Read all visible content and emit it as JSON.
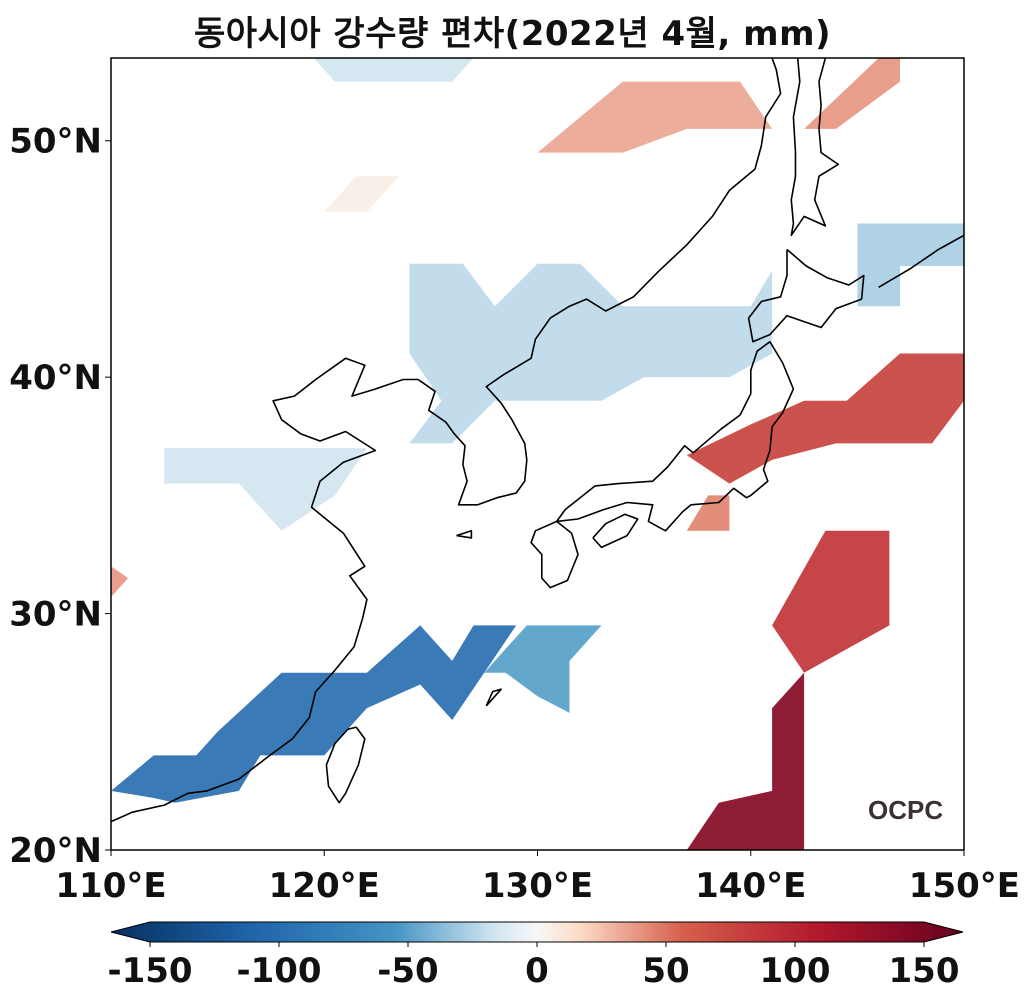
{
  "title": "동아시아 강수량 편차(2022년 4월, mm)",
  "logo": "OCPC",
  "map": {
    "lon_range": [
      110,
      150
    ],
    "lat_range": [
      20,
      53.5
    ],
    "lon_ticks": [
      "110°E",
      "120°E",
      "130°E",
      "140°E",
      "150°E"
    ],
    "lat_ticks": [
      "20°N",
      "30°N",
      "40°N",
      "50°N"
    ]
  },
  "colorbar": {
    "range": [
      -150,
      150
    ],
    "tick_labels": [
      "-150",
      "-100",
      "-50",
      "0",
      "50",
      "100",
      "150"
    ],
    "colormap": "RdBu_r",
    "colors": {
      "min": "#053061",
      "neg": "#4393c3",
      "zero": "#f7f7f7",
      "pos": "#d6604d",
      "max": "#67001f"
    }
  },
  "anomaly_regions": [
    {
      "name": "north-sea-blue",
      "value": -15,
      "lonlat": [
        [
          119.5,
          53.5
        ],
        [
          127,
          53.5
        ],
        [
          126,
          52.5
        ],
        [
          120.5,
          52.5
        ]
      ]
    },
    {
      "name": "okhotsk-red-band",
      "value": 30,
      "lonlat": [
        [
          130,
          49.5
        ],
        [
          134,
          52.5
        ],
        [
          139.5,
          52.5
        ],
        [
          141,
          50.5
        ],
        [
          137,
          50.5
        ],
        [
          134,
          49.5
        ]
      ]
    },
    {
      "name": "sakhalin-red",
      "value": 35,
      "lonlat": [
        [
          142.5,
          50.5
        ],
        [
          146,
          53.5
        ],
        [
          147,
          53.5
        ],
        [
          147,
          52.5
        ],
        [
          144,
          50.5
        ]
      ]
    },
    {
      "name": "small-white-red",
      "value": 5,
      "lonlat": [
        [
          120,
          47
        ],
        [
          121.5,
          48.5
        ],
        [
          123.5,
          48.5
        ],
        [
          122,
          47
        ]
      ]
    },
    {
      "name": "hokkaido-east-blue",
      "value": -25,
      "lonlat": [
        [
          145,
          46.5
        ],
        [
          150,
          46.5
        ],
        [
          150,
          44.7
        ],
        [
          147,
          44.7
        ],
        [
          147,
          43
        ],
        [
          145,
          43
        ]
      ]
    },
    {
      "name": "manchuria-korea-blue",
      "value": -20,
      "lonlat": [
        [
          124,
          44.8
        ],
        [
          126.5,
          44.8
        ],
        [
          128,
          43
        ],
        [
          130,
          44.8
        ],
        [
          132,
          44.8
        ],
        [
          134,
          43
        ],
        [
          140,
          43
        ],
        [
          141,
          44.5
        ],
        [
          141,
          41
        ],
        [
          139,
          40
        ],
        [
          135,
          40
        ],
        [
          133,
          39
        ],
        [
          128,
          39
        ],
        [
          126,
          37.2
        ],
        [
          124,
          37.2
        ],
        [
          125.5,
          39
        ],
        [
          124,
          41
        ]
      ]
    },
    {
      "name": "north-china-blue",
      "value": -15,
      "lonlat": [
        [
          112.5,
          37
        ],
        [
          122,
          37
        ],
        [
          120.5,
          35
        ],
        [
          118,
          33.5
        ],
        [
          116,
          35.5
        ],
        [
          112.5,
          35.5
        ]
      ]
    },
    {
      "name": "japan-north-red",
      "value": 70,
      "lonlat": [
        [
          140,
          38
        ],
        [
          142.5,
          39
        ],
        [
          144.5,
          39
        ],
        [
          147,
          41
        ],
        [
          150,
          41
        ],
        [
          150,
          39
        ],
        [
          148.5,
          37.2
        ],
        [
          144,
          37.2
        ],
        [
          141,
          36.5
        ],
        [
          139,
          35.5
        ],
        [
          137,
          36.7
        ]
      ]
    },
    {
      "name": "japan-south-red-small",
      "value": 40,
      "lonlat": [
        [
          137,
          33.5
        ],
        [
          139,
          33.5
        ],
        [
          139,
          35
        ],
        [
          138,
          35
        ]
      ]
    },
    {
      "name": "pacific-east-red",
      "value": 80,
      "lonlat": [
        [
          141,
          29.5
        ],
        [
          143.5,
          33.5
        ],
        [
          146.5,
          33.5
        ],
        [
          146.5,
          29.5
        ],
        [
          142.5,
          27.5
        ]
      ]
    },
    {
      "name": "subtropical-red",
      "value": 130,
      "lonlat": [
        [
          141,
          26
        ],
        [
          142.5,
          27.5
        ],
        [
          142.5,
          20
        ],
        [
          137,
          20
        ],
        [
          138.5,
          22
        ],
        [
          141,
          22.5
        ]
      ]
    },
    {
      "name": "west-edge-red",
      "value": 35,
      "lonlat": [
        [
          110,
          32
        ],
        [
          110.8,
          31.5
        ],
        [
          110,
          30.7
        ]
      ]
    },
    {
      "name": "south-china-blue",
      "value": -90,
      "lonlat": [
        [
          110,
          22.5
        ],
        [
          112,
          24
        ],
        [
          114,
          24
        ],
        [
          115,
          25
        ],
        [
          118,
          27.5
        ],
        [
          122,
          27.5
        ],
        [
          124.5,
          29.5
        ],
        [
          126,
          28
        ],
        [
          127,
          29.5
        ],
        [
          129,
          29.5
        ],
        [
          127.5,
          27.5
        ],
        [
          126,
          25.5
        ],
        [
          124.5,
          27
        ],
        [
          122,
          26
        ],
        [
          120,
          24
        ],
        [
          117,
          24
        ],
        [
          116,
          22.5
        ],
        [
          113,
          22
        ],
        [
          112,
          22.2
        ]
      ]
    },
    {
      "name": "ryukyu-blue",
      "value": -45,
      "lonlat": [
        [
          127.5,
          27.5
        ],
        [
          129.5,
          29.5
        ],
        [
          133,
          29.5
        ],
        [
          131.5,
          28
        ],
        [
          131.5,
          25.8
        ],
        [
          130,
          26.5
        ],
        [
          128.5,
          27.5
        ]
      ]
    }
  ],
  "coastlines": [
    {
      "name": "china-coast",
      "lonlat": [
        [
          110,
          21.2
        ],
        [
          111,
          21.6
        ],
        [
          112.5,
          21.9
        ],
        [
          113.6,
          22.4
        ],
        [
          114.5,
          22.5
        ],
        [
          116,
          23
        ],
        [
          117.3,
          23.9
        ],
        [
          118.5,
          24.7
        ],
        [
          119.3,
          25.6
        ],
        [
          119.6,
          26.7
        ],
        [
          120.5,
          27.6
        ],
        [
          121.4,
          28.6
        ],
        [
          121.8,
          29.8
        ],
        [
          122,
          30.6
        ],
        [
          121.2,
          31.6
        ],
        [
          121.9,
          32
        ],
        [
          120.9,
          33.4
        ],
        [
          119.4,
          34.5
        ],
        [
          119.8,
          35.6
        ],
        [
          120.9,
          36.4
        ],
        [
          122.4,
          36.9
        ],
        [
          121,
          37.7
        ],
        [
          119.8,
          37.3
        ],
        [
          118.9,
          37.6
        ],
        [
          118,
          38.2
        ],
        [
          117.6,
          39
        ],
        [
          118.6,
          39.2
        ],
        [
          119.6,
          39.9
        ],
        [
          121,
          40.8
        ],
        [
          121.9,
          40.5
        ],
        [
          121.3,
          39.2
        ],
        [
          122.4,
          39.5
        ],
        [
          123.7,
          39.9
        ],
        [
          124.4,
          39.9
        ]
      ]
    },
    {
      "name": "korea",
      "lonlat": [
        [
          124.4,
          39.9
        ],
        [
          125.2,
          39.4
        ],
        [
          124.9,
          38.6
        ],
        [
          125.7,
          38.1
        ],
        [
          126.1,
          37.6
        ],
        [
          126.6,
          37.1
        ],
        [
          126.5,
          36.3
        ],
        [
          126.7,
          35.6
        ],
        [
          126.3,
          34.6
        ],
        [
          127.2,
          34.6
        ],
        [
          128.1,
          34.9
        ],
        [
          129,
          35.1
        ],
        [
          129.4,
          35.6
        ],
        [
          129.5,
          36.5
        ],
        [
          129.4,
          37.2
        ],
        [
          128.8,
          38.2
        ],
        [
          128.3,
          38.9
        ],
        [
          127.6,
          39.6
        ],
        [
          128.4,
          40.1
        ],
        [
          129.7,
          40.8
        ],
        [
          129.9,
          41.6
        ],
        [
          130.6,
          42.5
        ]
      ]
    },
    {
      "name": "russia-coast",
      "lonlat": [
        [
          130.6,
          42.5
        ],
        [
          131.5,
          43
        ],
        [
          132.3,
          43.3
        ],
        [
          133.2,
          42.8
        ],
        [
          134.5,
          43.4
        ],
        [
          135.7,
          44.5
        ],
        [
          137,
          45.6
        ],
        [
          138.2,
          46.8
        ],
        [
          139,
          47.9
        ],
        [
          140.2,
          48.8
        ],
        [
          140.5,
          49.8
        ],
        [
          140.7,
          51
        ],
        [
          141.4,
          52
        ],
        [
          141.2,
          53
        ],
        [
          141,
          53.5
        ]
      ]
    },
    {
      "name": "sakhalin",
      "lonlat": [
        [
          142.2,
          53.5
        ],
        [
          142.3,
          52.5
        ],
        [
          142,
          51
        ],
        [
          142.1,
          49.5
        ],
        [
          142.1,
          48.5
        ],
        [
          141.9,
          47.5
        ],
        [
          142,
          46.5
        ],
        [
          141.9,
          46
        ],
        [
          142.5,
          46.8
        ],
        [
          143.5,
          46.4
        ],
        [
          143,
          47.5
        ],
        [
          143.2,
          48.5
        ],
        [
          144.1,
          49
        ],
        [
          143.3,
          49.5
        ],
        [
          143.2,
          50.5
        ],
        [
          143.3,
          51.5
        ],
        [
          143.2,
          52.5
        ],
        [
          143.5,
          53.5
        ]
      ]
    },
    {
      "name": "hokkaido",
      "lonlat": [
        [
          141.7,
          45.4
        ],
        [
          142.6,
          44.7
        ],
        [
          143.6,
          44.2
        ],
        [
          144.6,
          43.9
        ],
        [
          145.3,
          44.3
        ],
        [
          145.2,
          43.3
        ],
        [
          144,
          42.9
        ],
        [
          143.3,
          42.1
        ],
        [
          141.7,
          42.6
        ],
        [
          140.9,
          41.8
        ],
        [
          140.1,
          41.5
        ],
        [
          139.9,
          42.5
        ],
        [
          140.5,
          43.2
        ],
        [
          141.4,
          43.4
        ],
        [
          141.7,
          44.3
        ],
        [
          141.7,
          45.4
        ]
      ]
    },
    {
      "name": "honshu",
      "lonlat": [
        [
          140.9,
          41.5
        ],
        [
          141.5,
          40.6
        ],
        [
          142,
          39.5
        ],
        [
          141.5,
          38.5
        ],
        [
          141,
          37.9
        ],
        [
          140.9,
          36.9
        ],
        [
          140.6,
          36.1
        ],
        [
          140.8,
          35.6
        ],
        [
          140,
          35
        ],
        [
          139.8,
          34.9
        ],
        [
          139.2,
          35.3
        ],
        [
          138.5,
          34.7
        ],
        [
          137.2,
          34.6
        ],
        [
          136.8,
          34.3
        ],
        [
          136,
          33.5
        ],
        [
          135.2,
          33.9
        ],
        [
          135.4,
          34.6
        ],
        [
          134.2,
          34.7
        ],
        [
          133.1,
          34.4
        ],
        [
          131.9,
          34
        ],
        [
          130.9,
          33.9
        ],
        [
          131.3,
          34.4
        ],
        [
          132.7,
          35.4
        ],
        [
          133.8,
          35.5
        ],
        [
          135.4,
          35.6
        ],
        [
          136.1,
          36.2
        ],
        [
          136.9,
          37.1
        ],
        [
          137.3,
          36.8
        ],
        [
          138.6,
          37.8
        ],
        [
          139.5,
          38.4
        ],
        [
          140,
          39.3
        ],
        [
          140,
          40.3
        ],
        [
          140.3,
          41.1
        ],
        [
          140.9,
          41.5
        ]
      ]
    },
    {
      "name": "kyushu",
      "lonlat": [
        [
          130.9,
          33.9
        ],
        [
          131.6,
          33.4
        ],
        [
          131.9,
          32.5
        ],
        [
          131.4,
          31.4
        ],
        [
          130.6,
          31.1
        ],
        [
          130.2,
          31.5
        ],
        [
          130.2,
          32.5
        ],
        [
          129.7,
          33
        ],
        [
          129.9,
          33.5
        ],
        [
          130.9,
          33.9
        ]
      ]
    },
    {
      "name": "shikoku",
      "lonlat": [
        [
          132.6,
          33.2
        ],
        [
          133.2,
          33.8
        ],
        [
          134.1,
          34.2
        ],
        [
          134.7,
          34
        ],
        [
          134.2,
          33.3
        ],
        [
          133,
          32.8
        ],
        [
          132.6,
          33.2
        ]
      ]
    },
    {
      "name": "taiwan",
      "lonlat": [
        [
          121.5,
          25.2
        ],
        [
          121.9,
          24.7
        ],
        [
          121.6,
          23.6
        ],
        [
          121,
          22.4
        ],
        [
          120.7,
          22
        ],
        [
          120.2,
          22.7
        ],
        [
          120.1,
          23.6
        ],
        [
          120.5,
          24.5
        ],
        [
          121.1,
          25.1
        ],
        [
          121.5,
          25.2
        ]
      ]
    },
    {
      "name": "jeju",
      "lonlat": [
        [
          126.2,
          33.3
        ],
        [
          126.9,
          33.5
        ],
        [
          126.9,
          33.2
        ],
        [
          126.2,
          33.3
        ]
      ]
    },
    {
      "name": "okinawa",
      "lonlat": [
        [
          127.6,
          26.1
        ],
        [
          128.3,
          26.8
        ],
        [
          127.9,
          26.7
        ],
        [
          127.6,
          26.1
        ]
      ]
    },
    {
      "name": "kuril",
      "lonlat": [
        [
          146,
          43.8
        ],
        [
          147.5,
          44.6
        ],
        [
          148.8,
          45.4
        ],
        [
          150,
          46
        ]
      ]
    }
  ]
}
